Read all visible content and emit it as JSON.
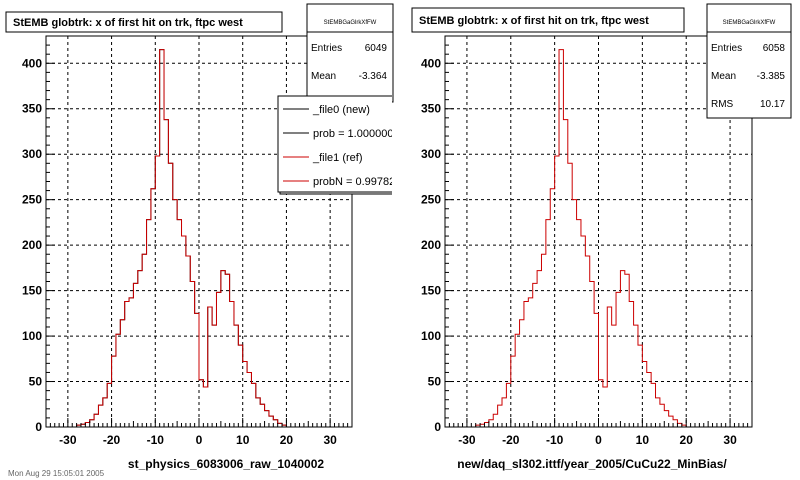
{
  "footer": "Mon Aug 29 15:05:01 2005",
  "colors": {
    "file0": "#000000",
    "file1": "#cc0000",
    "grid": "#000000",
    "frame": "#000000"
  },
  "legend": {
    "entries": [
      "_file0 (new)",
      "prob = 1.000000",
      "_file1 (ref)",
      "probN = 0.99782"
    ],
    "colors": [
      "#000000",
      "#000000",
      "#cc0000",
      "#cc0000"
    ]
  },
  "chart_data": [
    {
      "type": "histogram",
      "title": "StEMB globtrk: x of first hit on trk, ftpc west",
      "xlabel": "st_physics_6083006_raw_1040002",
      "ylabel": "",
      "xlim": [
        -35,
        35
      ],
      "ylim": [
        0,
        430
      ],
      "xticks": [
        -30,
        -20,
        -10,
        0,
        10,
        20,
        30
      ],
      "yticks": [
        0,
        50,
        100,
        150,
        200,
        250,
        300,
        350,
        400
      ],
      "grid": true,
      "bin_edges_start": -28,
      "bin_width": 1,
      "stats": {
        "name": "StEMBGaGlrkXfFW",
        "Entries": "6049",
        "Mean": "-3.364"
      },
      "series": [
        {
          "name": "_file0 (new)",
          "color": "#000000",
          "values": [
            2,
            3,
            5,
            8,
            14,
            24,
            32,
            48,
            78,
            102,
            118,
            138,
            142,
            158,
            172,
            190,
            228,
            262,
            298,
            415,
            338,
            290,
            250,
            228,
            210,
            188,
            160,
            125,
            52,
            44,
            132,
            112,
            148,
            172,
            168,
            138,
            112,
            90,
            72,
            60,
            48,
            32,
            25,
            18,
            12,
            8,
            4,
            2
          ]
        },
        {
          "name": "_file1 (ref)",
          "color": "#cc0000",
          "values": [
            2,
            3,
            5,
            8,
            14,
            24,
            32,
            48,
            78,
            102,
            118,
            138,
            142,
            158,
            172,
            190,
            228,
            262,
            298,
            415,
            338,
            290,
            250,
            228,
            210,
            188,
            160,
            125,
            52,
            44,
            132,
            112,
            148,
            172,
            168,
            138,
            112,
            90,
            72,
            60,
            48,
            32,
            25,
            18,
            12,
            8,
            4,
            2
          ]
        }
      ]
    },
    {
      "type": "histogram",
      "title": "StEMB globtrk: x of first hit on trk, ftpc west",
      "xlabel": "new/daq_sl302.ittf/year_2005/CuCu22_MinBias/",
      "ylabel": "",
      "xlim": [
        -35,
        35
      ],
      "ylim": [
        0,
        430
      ],
      "xticks": [
        -30,
        -20,
        -10,
        0,
        10,
        20,
        30
      ],
      "yticks": [
        0,
        50,
        100,
        150,
        200,
        250,
        300,
        350,
        400
      ],
      "grid": true,
      "bin_edges_start": -28,
      "bin_width": 1,
      "stats": {
        "name": "StEMBGaGlrkXfFW",
        "Entries": "6058",
        "Mean": "-3.385",
        "RMS": "10.17"
      },
      "series": [
        {
          "name": "",
          "color": "#cc0000",
          "values": [
            2,
            3,
            5,
            8,
            14,
            24,
            32,
            48,
            78,
            102,
            118,
            138,
            142,
            158,
            172,
            190,
            228,
            262,
            298,
            415,
            338,
            290,
            250,
            228,
            210,
            188,
            160,
            125,
            52,
            44,
            132,
            112,
            148,
            172,
            168,
            138,
            112,
            90,
            72,
            60,
            48,
            32,
            25,
            18,
            12,
            8,
            4,
            2
          ]
        }
      ]
    }
  ]
}
